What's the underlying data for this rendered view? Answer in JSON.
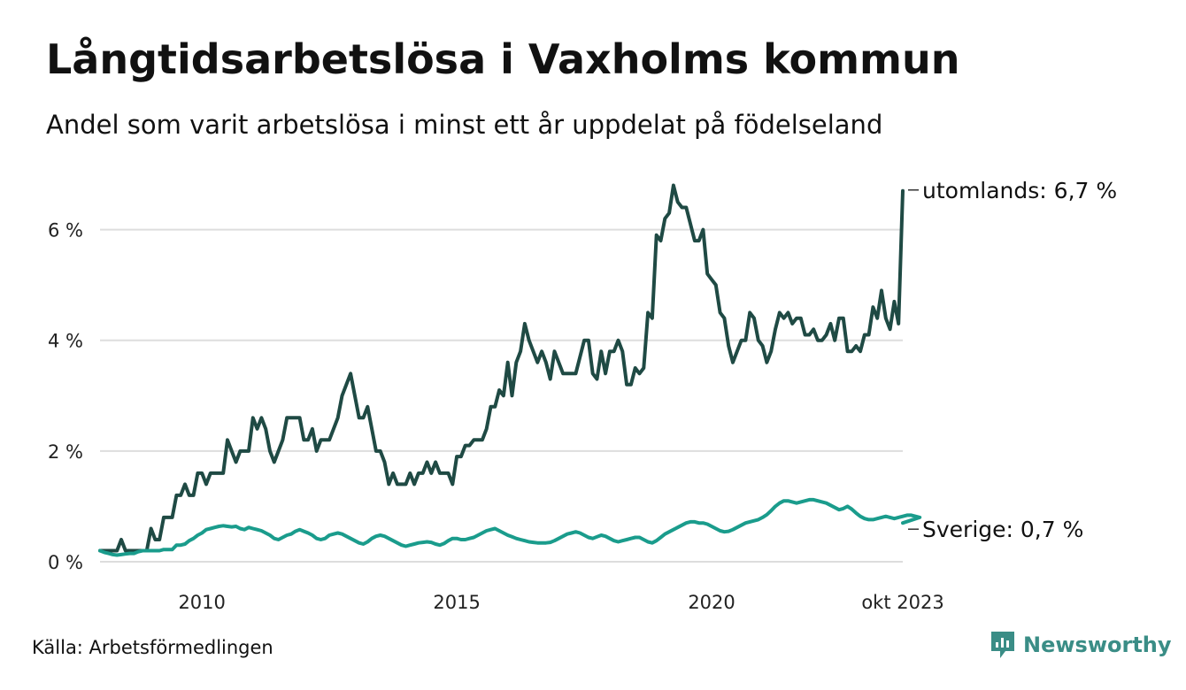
{
  "title": "Långtidsarbetslösa i Vaxholms kommun",
  "subtitle": "Andel som varit arbetslösa i minst ett år uppdelat på födelseland",
  "source": "Källa: Arbetsförmedlingen",
  "brand": "Newsworthy",
  "colors": {
    "utomlands": "#1f4a44",
    "sverige": "#1a9c8c",
    "grid": "#dddddd",
    "brand": "#3a8d86"
  },
  "chart_data": {
    "type": "line",
    "title": "Långtidsarbetslösa i Vaxholms kommun",
    "subtitle": "Andel som varit arbetslösa i minst ett år uppdelat på födelseland",
    "x_start": 2008.0,
    "x_step_years": 0.0833333,
    "x_range": [
      2008.0,
      2023.75
    ],
    "ylim": [
      0,
      7
    ],
    "y_ticks": [
      0,
      2,
      4,
      6
    ],
    "y_tick_labels": [
      "0 %",
      "2 %",
      "4 %",
      "6 %"
    ],
    "x_ticks": [
      2010,
      2015,
      2020,
      2023.75
    ],
    "x_tick_labels": [
      "2010",
      "2015",
      "2020",
      "okt 2023"
    ],
    "grid": true,
    "series": [
      {
        "name": "utomlands",
        "end_label": "utomlands: 6,7 %",
        "values": [
          0.2,
          0.2,
          0.2,
          0.2,
          0.2,
          0.4,
          0.2,
          0.2,
          0.2,
          0.2,
          0.2,
          0.2,
          0.6,
          0.4,
          0.4,
          0.8,
          0.8,
          0.8,
          1.2,
          1.2,
          1.4,
          1.2,
          1.2,
          1.6,
          1.6,
          1.4,
          1.6,
          1.6,
          1.6,
          1.6,
          2.2,
          2.0,
          1.8,
          2.0,
          2.0,
          2.0,
          2.6,
          2.4,
          2.6,
          2.4,
          2.0,
          1.8,
          2.0,
          2.2,
          2.6,
          2.6,
          2.6,
          2.6,
          2.2,
          2.2,
          2.4,
          2.0,
          2.2,
          2.2,
          2.2,
          2.4,
          2.6,
          3.0,
          3.2,
          3.4,
          3.0,
          2.6,
          2.6,
          2.8,
          2.4,
          2.0,
          2.0,
          1.8,
          1.4,
          1.6,
          1.4,
          1.4,
          1.4,
          1.6,
          1.4,
          1.6,
          1.6,
          1.8,
          1.6,
          1.8,
          1.6,
          1.6,
          1.6,
          1.4,
          1.9,
          1.9,
          2.1,
          2.1,
          2.2,
          2.2,
          2.2,
          2.4,
          2.8,
          2.8,
          3.1,
          3.0,
          3.6,
          3.0,
          3.6,
          3.8,
          4.3,
          4.0,
          3.8,
          3.6,
          3.8,
          3.6,
          3.3,
          3.8,
          3.6,
          3.4,
          3.4,
          3.4,
          3.4,
          3.7,
          4.0,
          4.0,
          3.4,
          3.3,
          3.8,
          3.4,
          3.8,
          3.8,
          4.0,
          3.8,
          3.2,
          3.2,
          3.5,
          3.4,
          3.5,
          4.5,
          4.4,
          5.9,
          5.8,
          6.2,
          6.3,
          6.8,
          6.5,
          6.4,
          6.4,
          6.1,
          5.8,
          5.8,
          6.0,
          5.2,
          5.1,
          5.0,
          4.5,
          4.4,
          3.9,
          3.6,
          3.8,
          4.0,
          4.0,
          4.5,
          4.4,
          4.0,
          3.9,
          3.6,
          3.8,
          4.2,
          4.5,
          4.4,
          4.5,
          4.3,
          4.4,
          4.4,
          4.1,
          4.1,
          4.2,
          4.0,
          4.0,
          4.1,
          4.3,
          4.0,
          4.4,
          4.4,
          3.8,
          3.8,
          3.9,
          3.8,
          4.1,
          4.1,
          4.6,
          4.4,
          4.9,
          4.4,
          4.2,
          4.7,
          4.3,
          6.7
        ]
      },
      {
        "name": "Sverige",
        "end_label": "Sverige: 0,7 %",
        "values": [
          0.2,
          0.17,
          0.15,
          0.13,
          0.12,
          0.13,
          0.14,
          0.15,
          0.15,
          0.18,
          0.2,
          0.2,
          0.2,
          0.2,
          0.2,
          0.22,
          0.22,
          0.22,
          0.3,
          0.3,
          0.32,
          0.38,
          0.42,
          0.48,
          0.52,
          0.58,
          0.6,
          0.62,
          0.64,
          0.65,
          0.64,
          0.63,
          0.64,
          0.6,
          0.58,
          0.62,
          0.6,
          0.58,
          0.56,
          0.52,
          0.48,
          0.42,
          0.4,
          0.44,
          0.48,
          0.5,
          0.55,
          0.58,
          0.55,
          0.52,
          0.48,
          0.42,
          0.4,
          0.42,
          0.48,
          0.5,
          0.52,
          0.5,
          0.46,
          0.42,
          0.38,
          0.34,
          0.32,
          0.36,
          0.42,
          0.46,
          0.48,
          0.46,
          0.42,
          0.38,
          0.34,
          0.3,
          0.28,
          0.3,
          0.32,
          0.34,
          0.35,
          0.36,
          0.35,
          0.32,
          0.3,
          0.33,
          0.38,
          0.42,
          0.42,
          0.4,
          0.4,
          0.42,
          0.44,
          0.48,
          0.52,
          0.56,
          0.58,
          0.6,
          0.56,
          0.52,
          0.48,
          0.45,
          0.42,
          0.4,
          0.38,
          0.36,
          0.35,
          0.34,
          0.34,
          0.34,
          0.35,
          0.38,
          0.42,
          0.46,
          0.5,
          0.52,
          0.54,
          0.52,
          0.48,
          0.44,
          0.42,
          0.45,
          0.48,
          0.46,
          0.42,
          0.38,
          0.36,
          0.38,
          0.4,
          0.42,
          0.44,
          0.44,
          0.4,
          0.36,
          0.34,
          0.38,
          0.44,
          0.5,
          0.54,
          0.58,
          0.62,
          0.66,
          0.7,
          0.72,
          0.72,
          0.7,
          0.7,
          0.68,
          0.64,
          0.6,
          0.56,
          0.54,
          0.55,
          0.58,
          0.62,
          0.66,
          0.7,
          0.72,
          0.74,
          0.76,
          0.8,
          0.85,
          0.92,
          1.0,
          1.06,
          1.1,
          1.1,
          1.08,
          1.06,
          1.08,
          1.1,
          1.12,
          1.12,
          1.1,
          1.08,
          1.06,
          1.02,
          0.98,
          0.94,
          0.96,
          1.0,
          0.95,
          0.88,
          0.82,
          0.78,
          0.76,
          0.76,
          0.78,
          0.8,
          0.82,
          0.8,
          0.78,
          0.8,
          0.82,
          0.84,
          0.84,
          0.82,
          0.8,
          0.7
        ]
      }
    ]
  }
}
